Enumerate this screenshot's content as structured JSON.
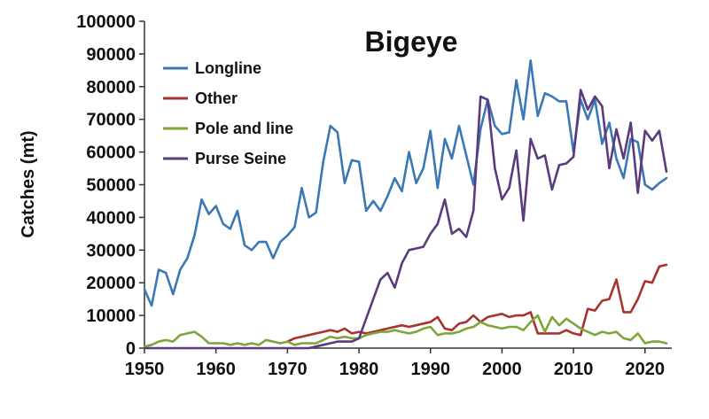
{
  "chart_data": {
    "type": "line",
    "title": "Bigeye",
    "xlabel": "",
    "ylabel": "Catches (mt)",
    "xlim": [
      1950,
      2023
    ],
    "ylim": [
      0,
      100000
    ],
    "x_ticks": [
      "1950",
      "1960",
      "1970",
      "1980",
      "1990",
      "2000",
      "2010",
      "2020"
    ],
    "y_ticks": [
      "0",
      "10000",
      "20000",
      "30000",
      "40000",
      "50000",
      "60000",
      "70000",
      "80000",
      "90000",
      "100000"
    ],
    "grid": false,
    "legend_position": "top-left",
    "series": [
      {
        "name": "Longline",
        "color": "#3a78b6",
        "x": [
          1950,
          1951,
          1952,
          1953,
          1954,
          1955,
          1956,
          1957,
          1958,
          1959,
          1960,
          1961,
          1962,
          1963,
          1964,
          1965,
          1966,
          1967,
          1968,
          1969,
          1970,
          1971,
          1972,
          1973,
          1974,
          1975,
          1976,
          1977,
          1978,
          1979,
          1980,
          1981,
          1982,
          1983,
          1984,
          1985,
          1986,
          1987,
          1988,
          1989,
          1990,
          1991,
          1992,
          1993,
          1994,
          1995,
          1996,
          1997,
          1998,
          1999,
          2000,
          2001,
          2002,
          2003,
          2004,
          2005,
          2006,
          2007,
          2008,
          2009,
          2010,
          2011,
          2012,
          2013,
          2014,
          2015,
          2016,
          2017,
          2018,
          2019,
          2020,
          2021,
          2022,
          2023
        ],
        "values": [
          18000,
          13000,
          24000,
          23000,
          16500,
          24000,
          27500,
          34500,
          45500,
          41000,
          43500,
          38000,
          36500,
          42000,
          31500,
          30000,
          32500,
          32500,
          27500,
          32500,
          34500,
          37000,
          49000,
          40000,
          41500,
          57000,
          68000,
          66000,
          50500,
          57500,
          57000,
          42000,
          45000,
          42000,
          46500,
          52000,
          48000,
          60000,
          50500,
          55000,
          66500,
          49000,
          64000,
          58000,
          68000,
          59000,
          50000,
          67000,
          76000,
          68000,
          65500,
          66000,
          82000,
          70000,
          88000,
          71000,
          78000,
          77000,
          75500,
          75500,
          60000,
          76000,
          70000,
          76000,
          62500,
          69000,
          58000,
          52000,
          64000,
          63000,
          50000,
          48500,
          50500,
          52000
        ]
      },
      {
        "name": "Other",
        "color": "#a8322e",
        "x": [
          1970,
          1971,
          1972,
          1973,
          1974,
          1975,
          1976,
          1977,
          1978,
          1979,
          1980,
          1981,
          1982,
          1983,
          1984,
          1985,
          1986,
          1987,
          1988,
          1989,
          1990,
          1991,
          1992,
          1993,
          1994,
          1995,
          1996,
          1997,
          1998,
          1999,
          2000,
          2001,
          2002,
          2003,
          2004,
          2005,
          2006,
          2007,
          2008,
          2009,
          2010,
          2011,
          2012,
          2013,
          2014,
          2015,
          2016,
          2017,
          2018,
          2019,
          2020,
          2021,
          2022,
          2023
        ],
        "values": [
          2000,
          3000,
          3500,
          4000,
          4500,
          5000,
          5500,
          5000,
          6000,
          4500,
          5000,
          4500,
          5000,
          5500,
          6000,
          6500,
          7000,
          6500,
          7000,
          7500,
          8000,
          9500,
          6000,
          5500,
          7500,
          8000,
          10000,
          8000,
          9500,
          10000,
          10500,
          9500,
          10000,
          10000,
          11000,
          4500,
          4500,
          4500,
          4500,
          5500,
          4500,
          4000,
          12000,
          11500,
          14500,
          15000,
          21000,
          11000,
          11000,
          15000,
          20500,
          20000,
          25000,
          25500
        ]
      },
      {
        "name": "Pole and line",
        "color": "#7ea43a",
        "x": [
          1950,
          1951,
          1952,
          1953,
          1954,
          1955,
          1956,
          1957,
          1958,
          1959,
          1960,
          1961,
          1962,
          1963,
          1964,
          1965,
          1966,
          1967,
          1968,
          1969,
          1970,
          1971,
          1972,
          1973,
          1974,
          1975,
          1976,
          1977,
          1978,
          1979,
          1980,
          1981,
          1982,
          1983,
          1984,
          1985,
          1986,
          1987,
          1988,
          1989,
          1990,
          1991,
          1992,
          1993,
          1994,
          1995,
          1996,
          1997,
          1998,
          1999,
          2000,
          2001,
          2002,
          2003,
          2004,
          2005,
          2006,
          2007,
          2008,
          2009,
          2010,
          2011,
          2012,
          2013,
          2014,
          2015,
          2016,
          2017,
          2018,
          2019,
          2020,
          2021,
          2022,
          2023
        ],
        "values": [
          500,
          1000,
          2000,
          2500,
          2000,
          4000,
          4500,
          5000,
          3500,
          1500,
          1500,
          1500,
          1000,
          1500,
          1000,
          1500,
          1000,
          2500,
          2000,
          1500,
          2000,
          1000,
          1500,
          1500,
          1500,
          2500,
          3500,
          3000,
          3500,
          3000,
          3000,
          4000,
          4500,
          5000,
          5000,
          5500,
          5000,
          4500,
          5000,
          6000,
          6500,
          4000,
          4500,
          4500,
          5000,
          6000,
          6500,
          8000,
          7000,
          6500,
          6000,
          6500,
          6500,
          5500,
          8000,
          10000,
          5000,
          9500,
          7000,
          9000,
          7500,
          6000,
          5000,
          4000,
          5000,
          4500,
          5000,
          3000,
          2500,
          4500,
          1500,
          2000,
          2000,
          1500
        ]
      },
      {
        "name": "Purse Seine",
        "color": "#5b3a7e",
        "x": [
          1950,
          1951,
          1952,
          1953,
          1954,
          1955,
          1956,
          1957,
          1958,
          1959,
          1960,
          1961,
          1962,
          1963,
          1964,
          1965,
          1966,
          1967,
          1968,
          1969,
          1970,
          1971,
          1972,
          1973,
          1974,
          1975,
          1976,
          1977,
          1978,
          1979,
          1980,
          1981,
          1982,
          1983,
          1984,
          1985,
          1986,
          1987,
          1988,
          1989,
          1990,
          1991,
          1992,
          1993,
          1994,
          1995,
          1996,
          1997,
          1998,
          1999,
          2000,
          2001,
          2002,
          2003,
          2004,
          2005,
          2006,
          2007,
          2008,
          2009,
          2010,
          2011,
          2012,
          2013,
          2014,
          2015,
          2016,
          2017,
          2018,
          2019,
          2020,
          2021,
          2022,
          2023
        ],
        "values": [
          0,
          0,
          0,
          0,
          0,
          0,
          0,
          0,
          0,
          0,
          0,
          0,
          0,
          0,
          0,
          0,
          0,
          0,
          0,
          0,
          0,
          0,
          0,
          0,
          500,
          1000,
          1500,
          2000,
          2000,
          2000,
          3000,
          9000,
          15000,
          21000,
          23000,
          18500,
          26000,
          30000,
          30500,
          31000,
          35000,
          38000,
          45500,
          35000,
          36500,
          34000,
          42000,
          77000,
          76000,
          55000,
          45500,
          49000,
          60500,
          39000,
          64000,
          58000,
          59000,
          48500,
          56000,
          56500,
          58500,
          79000,
          73000,
          77000,
          74000,
          55000,
          67000,
          58000,
          69000,
          47500,
          66500,
          63500,
          66500,
          54000
        ]
      }
    ]
  }
}
